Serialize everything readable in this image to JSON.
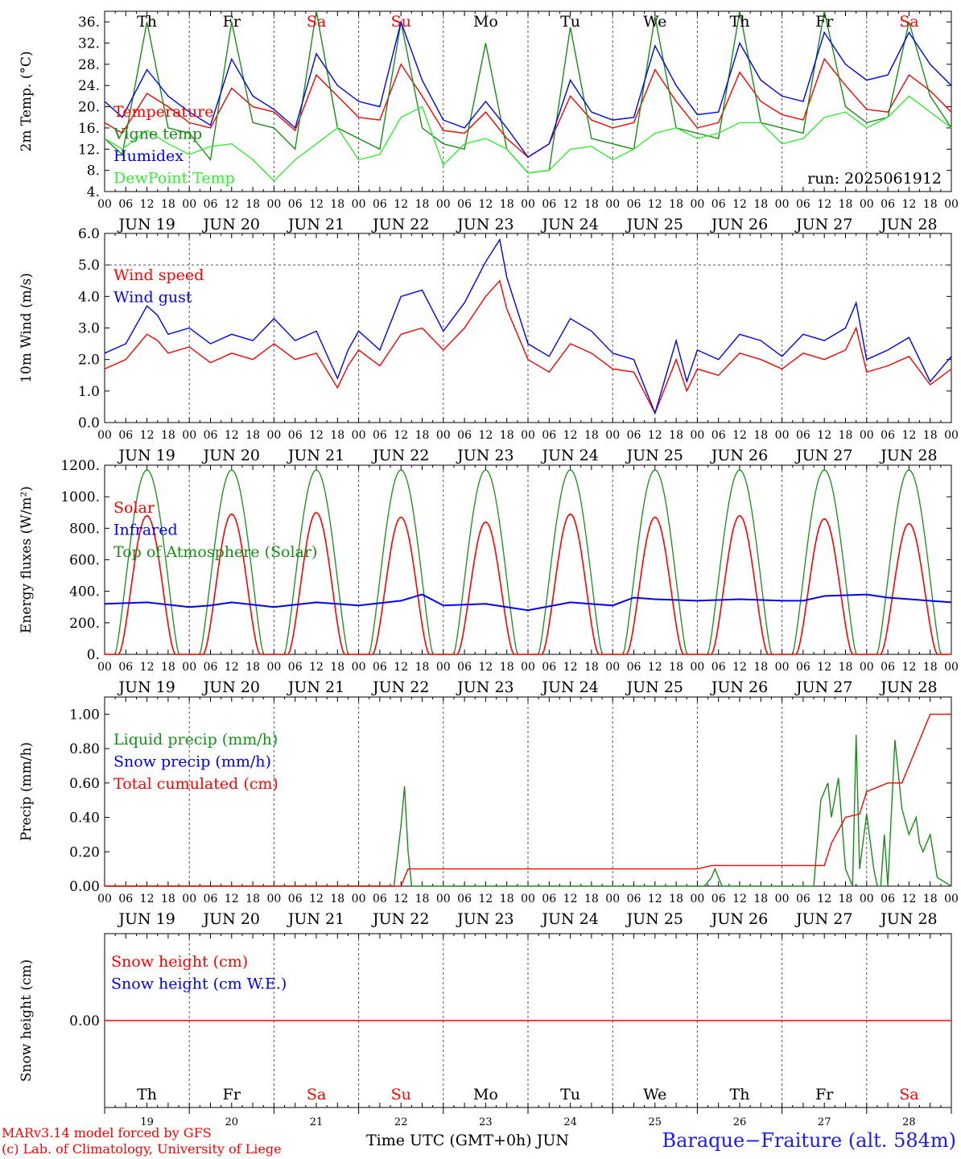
{
  "colors": {
    "red": "#ff0000",
    "darkgreen": "#1a8c1a",
    "blue": "#0000ff",
    "lightgreen": "#33ee33",
    "grid": "#555555"
  },
  "day_names": [
    "Th",
    "Fr",
    "Sa",
    "Su",
    "Mo",
    "Tu",
    "We",
    "Th",
    "Fr",
    "Sa"
  ],
  "weekend_indices": [
    2,
    3,
    9
  ],
  "day_dates": [
    "JUN 19",
    "JUN 20",
    "JUN 21",
    "JUN 22",
    "JUN 23",
    "JUN 24",
    "JUN 25",
    "JUN 26",
    "JUN 27",
    "JUN 28"
  ],
  "day_numbers": [
    "19",
    "20",
    "21",
    "22",
    "23",
    "24",
    "25",
    "26",
    "27",
    "28"
  ],
  "hour_ticks": [
    "00",
    "06",
    "12",
    "18"
  ],
  "run_label": "run: 2025061912",
  "footer": {
    "model": "MARv3.14 model forced by GFS",
    "lab": "(c) Lab. of Climatology, University of Liege",
    "axis_label": "Time UTC (GMT+0h) JUN",
    "station": "Baraque−Fraiture (alt. 584m)"
  },
  "chart_data": [
    {
      "id": "temp",
      "type": "line",
      "ylabel": "2m Temp. (°C)",
      "ylim": [
        4,
        38
      ],
      "yticks": [
        4,
        8,
        12,
        16,
        20,
        24,
        28,
        32,
        36
      ],
      "ytick_labels": [
        "4.",
        "8.",
        "12.",
        "16.",
        "20.",
        "24.",
        "28.",
        "32.",
        "36."
      ],
      "x_unit": "hours since JUN 19 00 UTC",
      "legend": [
        "Temperature",
        "Vigne temp",
        "Humidex",
        "DewPoint Temp"
      ],
      "series": [
        {
          "name": "Temperature",
          "color": "#ff0000",
          "x": [
            0,
            5,
            12,
            18,
            24,
            30,
            36,
            42,
            48,
            54,
            60,
            66,
            72,
            78,
            84,
            90,
            96,
            102,
            108,
            114,
            120,
            126,
            132,
            138,
            144,
            150,
            156,
            162,
            168,
            174,
            180,
            186,
            192,
            198,
            204,
            210,
            216,
            222,
            228,
            234,
            240
          ],
          "y": [
            17,
            15,
            22.5,
            20,
            17,
            16,
            23.5,
            20,
            19,
            15.5,
            26,
            22,
            18,
            17.5,
            28,
            22,
            15.5,
            15,
            19,
            14,
            10.5,
            13,
            22,
            17.5,
            16,
            17,
            27,
            21,
            16,
            17,
            26.5,
            21,
            18.5,
            17.5,
            29,
            24,
            19.5,
            19,
            26,
            23,
            19
          ]
        },
        {
          "name": "Vigne temp",
          "color": "#1a8c1a",
          "x": [
            0,
            5,
            12,
            18,
            24,
            30,
            36,
            42,
            48,
            54,
            60,
            66,
            72,
            78,
            84,
            90,
            96,
            102,
            108,
            114,
            120,
            126,
            132,
            138,
            144,
            150,
            156,
            162,
            168,
            174,
            180,
            186,
            192,
            198,
            204,
            210,
            216,
            222,
            228,
            234,
            240
          ],
          "y": [
            14,
            11,
            36,
            16,
            15,
            10,
            36,
            17,
            16,
            12,
            38,
            16,
            14,
            12,
            36,
            16,
            13,
            12,
            32,
            12,
            7.5,
            8,
            35,
            14,
            13,
            12,
            37,
            16,
            15,
            14,
            38,
            17,
            16,
            15,
            38,
            20,
            17,
            18,
            36,
            22,
            16
          ]
        },
        {
          "name": "Humidex",
          "color": "#0000ff",
          "x": [
            0,
            5,
            12,
            18,
            24,
            30,
            36,
            42,
            48,
            54,
            60,
            66,
            72,
            78,
            84,
            90,
            96,
            102,
            108,
            114,
            120,
            126,
            132,
            138,
            144,
            150,
            156,
            162,
            168,
            174,
            180,
            186,
            192,
            198,
            204,
            210,
            216,
            222,
            228,
            234,
            240
          ],
          "y": [
            21,
            18,
            27,
            22,
            19,
            16.5,
            29,
            22,
            19.5,
            16,
            30,
            24,
            21,
            20,
            36,
            25,
            17.5,
            16,
            21,
            16,
            10.5,
            13,
            25,
            19,
            17.5,
            18,
            31.5,
            24,
            18.5,
            19,
            32,
            25,
            22,
            21,
            34,
            28,
            25,
            26,
            34,
            28,
            24
          ]
        },
        {
          "name": "DewPoint Temp",
          "color": "#33ee33",
          "x": [
            0,
            5,
            12,
            18,
            24,
            30,
            36,
            42,
            48,
            54,
            60,
            66,
            72,
            78,
            84,
            90,
            96,
            102,
            108,
            114,
            120,
            126,
            132,
            138,
            144,
            150,
            156,
            162,
            168,
            174,
            180,
            186,
            192,
            198,
            204,
            210,
            216,
            222,
            228,
            234,
            240
          ],
          "y": [
            14,
            12,
            15.5,
            13,
            11,
            12.5,
            13,
            10,
            6,
            10,
            13,
            16,
            10,
            11,
            18,
            20,
            9,
            13,
            14,
            12,
            7.5,
            8,
            12,
            12.5,
            10,
            12,
            15,
            16,
            14,
            15,
            17,
            17,
            13,
            14,
            18,
            19,
            16,
            18,
            22,
            19,
            16
          ]
        }
      ]
    },
    {
      "id": "wind",
      "type": "line",
      "ylabel": "10m Wind (m/s)",
      "ylim": [
        0,
        6
      ],
      "yticks": [
        0,
        1,
        2,
        3,
        4,
        5,
        6
      ],
      "ytick_labels": [
        "0.0",
        "1.0",
        "2.0",
        "3.0",
        "4.0",
        "5.0",
        "6.0"
      ],
      "hline": 5.0,
      "legend": [
        "Wind speed",
        "Wind gust"
      ],
      "series": [
        {
          "name": "Wind speed",
          "color": "#ff0000",
          "x": [
            0,
            6,
            12,
            15,
            18,
            24,
            30,
            36,
            42,
            48,
            54,
            60,
            66,
            69,
            72,
            78,
            84,
            90,
            96,
            102,
            108,
            112,
            114,
            120,
            126,
            132,
            138,
            144,
            150,
            156,
            162,
            165,
            168,
            174,
            180,
            186,
            192,
            198,
            204,
            210,
            213,
            216,
            222,
            228,
            234,
            240
          ],
          "y": [
            1.7,
            2.0,
            2.8,
            2.6,
            2.2,
            2.4,
            1.9,
            2.2,
            2.0,
            2.5,
            2.0,
            2.2,
            1.1,
            1.8,
            2.3,
            1.8,
            2.8,
            3.0,
            2.3,
            3.0,
            4.0,
            4.5,
            3.6,
            2.0,
            1.6,
            2.5,
            2.2,
            1.7,
            1.6,
            0.3,
            2.0,
            1.0,
            1.7,
            1.5,
            2.2,
            2.0,
            1.7,
            2.2,
            2.0,
            2.3,
            3.0,
            1.6,
            1.8,
            2.1,
            1.2,
            1.7
          ]
        },
        {
          "name": "Wind gust",
          "color": "#0000ff",
          "x": [
            0,
            6,
            12,
            15,
            18,
            24,
            30,
            36,
            42,
            48,
            54,
            60,
            66,
            69,
            72,
            78,
            84,
            90,
            96,
            102,
            108,
            112,
            114,
            120,
            126,
            132,
            138,
            144,
            150,
            156,
            162,
            165,
            168,
            174,
            180,
            186,
            192,
            198,
            204,
            210,
            213,
            216,
            222,
            228,
            234,
            240
          ],
          "y": [
            2.2,
            2.5,
            3.7,
            3.4,
            2.8,
            3.0,
            2.5,
            2.8,
            2.6,
            3.3,
            2.6,
            2.9,
            1.4,
            2.3,
            2.9,
            2.3,
            4.0,
            4.2,
            2.9,
            3.8,
            5.1,
            5.8,
            4.6,
            2.5,
            2.1,
            3.3,
            2.9,
            2.2,
            2.0,
            0.3,
            2.6,
            1.3,
            2.3,
            2.0,
            2.8,
            2.6,
            2.1,
            2.8,
            2.6,
            3.0,
            3.8,
            2.0,
            2.3,
            2.7,
            1.3,
            2.1
          ]
        }
      ]
    },
    {
      "id": "energy",
      "type": "line",
      "ylabel": "Energy fluxes (W/m²)",
      "ylim": [
        0,
        1200
      ],
      "yticks": [
        0,
        200,
        400,
        600,
        800,
        1000,
        1200
      ],
      "ytick_labels": [
        "0.",
        "200.",
        "400.",
        "600.",
        "800.",
        "1000.",
        "1200."
      ],
      "legend": [
        "Solar",
        "Infrared",
        "Top of Atmosphere (Solar)"
      ],
      "toa_peak": 1170,
      "solar_peaks": [
        880,
        890,
        900,
        870,
        840,
        890,
        870,
        880,
        860,
        830
      ],
      "series": [
        {
          "name": "Infrared",
          "color": "#0000ff",
          "x": [
            0,
            12,
            24,
            30,
            36,
            48,
            60,
            72,
            84,
            90,
            96,
            108,
            114,
            120,
            132,
            144,
            150,
            156,
            168,
            180,
            192,
            198,
            204,
            216,
            222,
            240
          ],
          "y": [
            320,
            330,
            300,
            310,
            330,
            300,
            330,
            310,
            340,
            380,
            310,
            320,
            300,
            280,
            330,
            310,
            360,
            350,
            340,
            350,
            340,
            340,
            370,
            380,
            360,
            330
          ]
        }
      ]
    },
    {
      "id": "precip",
      "type": "line",
      "ylabel": "Precip (mm/h)",
      "ylim": [
        0,
        1.1
      ],
      "yticks": [
        0,
        0.2,
        0.4,
        0.6,
        0.8,
        1.0
      ],
      "ytick_labels": [
        "0.00",
        "0.20",
        "0.40",
        "0.60",
        "0.80",
        "1.00"
      ],
      "legend": [
        "Liquid precip (mm/h)",
        "Snow precip (mm/h)",
        "Total cumulated (cm)"
      ],
      "series": [
        {
          "name": "Liquid precip (mm/h)",
          "color": "#1a8c1a",
          "x": [
            0,
            82,
            84,
            85,
            86,
            87,
            88,
            170,
            172,
            173,
            174,
            175,
            176,
            201,
            203,
            205,
            206,
            208,
            210,
            212,
            213,
            214,
            216,
            218,
            219,
            220,
            221,
            222,
            224,
            226,
            228,
            230,
            231,
            232,
            234,
            236,
            240
          ],
          "y": [
            0,
            0,
            0.35,
            0.58,
            0.2,
            0,
            0,
            0,
            0.05,
            0.1,
            0.05,
            0,
            0,
            0,
            0.5,
            0.6,
            0.4,
            0.63,
            0.1,
            0,
            0.88,
            0.1,
            0.42,
            0.1,
            0,
            0,
            0.3,
            0,
            0.85,
            0.45,
            0.3,
            0.4,
            0.25,
            0.2,
            0.3,
            0.05,
            0
          ]
        },
        {
          "name": "Total cumulated (cm)",
          "color": "#ff0000",
          "x": [
            0,
            84,
            86,
            96,
            120,
            168,
            172,
            180,
            204,
            206,
            210,
            214,
            216,
            222,
            226,
            230,
            234,
            240
          ],
          "y": [
            0,
            0,
            0.1,
            0.1,
            0.1,
            0.1,
            0.12,
            0.12,
            0.12,
            0.25,
            0.4,
            0.42,
            0.55,
            0.6,
            0.6,
            0.8,
            1.0,
            1.0
          ]
        }
      ]
    },
    {
      "id": "snow",
      "type": "line",
      "ylabel": "Snow height (cm)",
      "ylim": [
        -1,
        1
      ],
      "yticks": [
        0
      ],
      "ytick_labels": [
        "0.00"
      ],
      "legend": [
        "Snow height (cm)",
        "Snow height (cm W.E.)"
      ],
      "series": [
        {
          "name": "Snow height (cm)",
          "color": "#ff0000",
          "x": [
            0,
            240
          ],
          "y": [
            0,
            0
          ]
        }
      ]
    }
  ]
}
